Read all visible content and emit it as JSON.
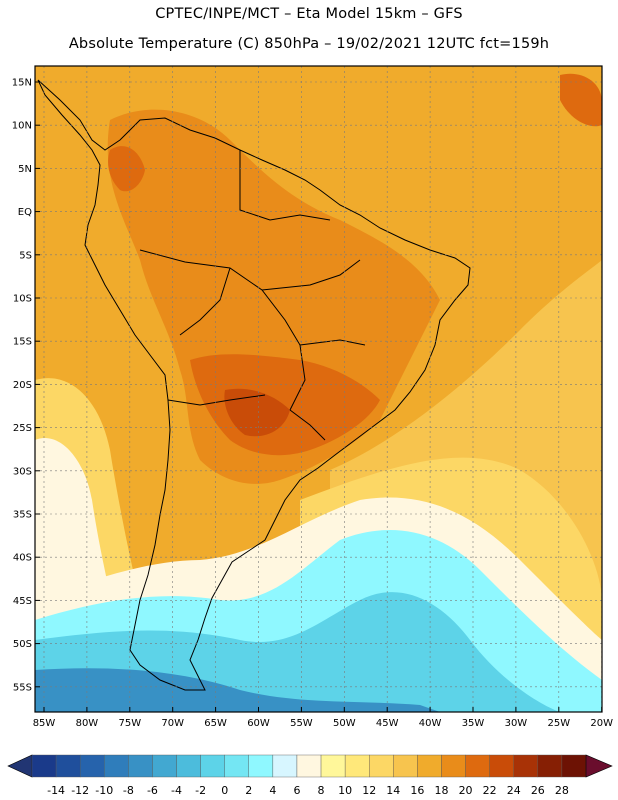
{
  "title_line1": "CPTEC/INPE/MCT –  Eta Model 15km – GFS",
  "title_line2": "Absolute Temperature (C) 850hPa – 19/02/2021 12UTC fct=159h",
  "lat_labels": [
    "15N",
    "10N",
    "5N",
    "EQ",
    "5S",
    "10S",
    "15S",
    "20S",
    "25S",
    "30S",
    "35S",
    "40S",
    "45S",
    "50S",
    "55S"
  ],
  "lon_labels": [
    "85W",
    "80W",
    "75W",
    "70W",
    "65W",
    "60W",
    "55W",
    "50W",
    "45W",
    "40W",
    "35W",
    "30W",
    "25W",
    "20W"
  ],
  "colorbar": {
    "levels": [
      "-14",
      "-12",
      "-10",
      "-8",
      "-6",
      "-4",
      "-2",
      "0",
      "2",
      "4",
      "6",
      "8",
      "10",
      "12",
      "14",
      "16",
      "18",
      "20",
      "22",
      "24",
      "26",
      "28"
    ],
    "colors": [
      "#1a3a8a",
      "#1f4f9c",
      "#2663ac",
      "#2f7dbb",
      "#3891c5",
      "#42a8d1",
      "#4cbcdc",
      "#5dd3e8",
      "#74e6f3",
      "#8ff8ff",
      "#d7f6ff",
      "#fff7e0",
      "#fff79a",
      "#ffe87a",
      "#fcd765",
      "#f7c44e",
      "#f0ab2c",
      "#e98c1a",
      "#de6a0f",
      "#c94c08",
      "#a83206",
      "#861f04",
      "#6d1204"
    ],
    "low_color": "#213573",
    "high_color": "#6a0d2d"
  },
  "colors": {
    "warm_base": "#f0ab2c",
    "hot": "#e98c1a",
    "hotter": "#de6a0f",
    "hottest": "#c94c08",
    "mild": "#f7c44e",
    "pale_yellow": "#fcd765",
    "cream": "#fff7e0",
    "light_cyan": "#8ff8ff",
    "cyan": "#5dd3e8",
    "blue": "#3891c5",
    "coast": "#000000"
  }
}
